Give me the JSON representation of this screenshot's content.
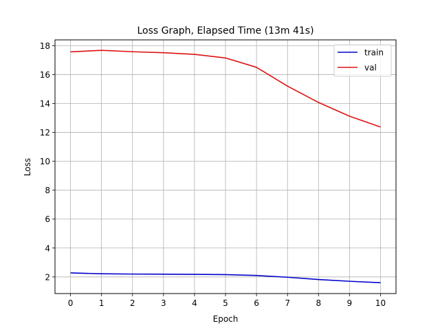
{
  "chart_data": {
    "type": "line",
    "title": "Loss Graph, Elapsed Time (13m 41s)",
    "xlabel": "Epoch",
    "ylabel": "Loss",
    "x": [
      0,
      1,
      2,
      3,
      4,
      5,
      6,
      7,
      8,
      9,
      10
    ],
    "xlim": [
      -0.5,
      10.5
    ],
    "ylim": [
      0.85,
      18.4
    ],
    "xticks": [
      0,
      1,
      2,
      3,
      4,
      5,
      6,
      7,
      8,
      9,
      10
    ],
    "yticks": [
      2,
      4,
      6,
      8,
      10,
      12,
      14,
      16,
      18
    ],
    "grid": true,
    "legend_position": "top-right",
    "series": [
      {
        "name": "train",
        "color": "#0000cc",
        "values": [
          2.28,
          2.22,
          2.2,
          2.19,
          2.18,
          2.16,
          2.1,
          1.98,
          1.82,
          1.7,
          1.6
        ]
      },
      {
        "name": "val",
        "color": "#dd1111",
        "values": [
          17.57,
          17.68,
          17.58,
          17.51,
          17.4,
          17.15,
          16.5,
          15.2,
          14.07,
          13.12,
          12.37
        ]
      }
    ]
  }
}
